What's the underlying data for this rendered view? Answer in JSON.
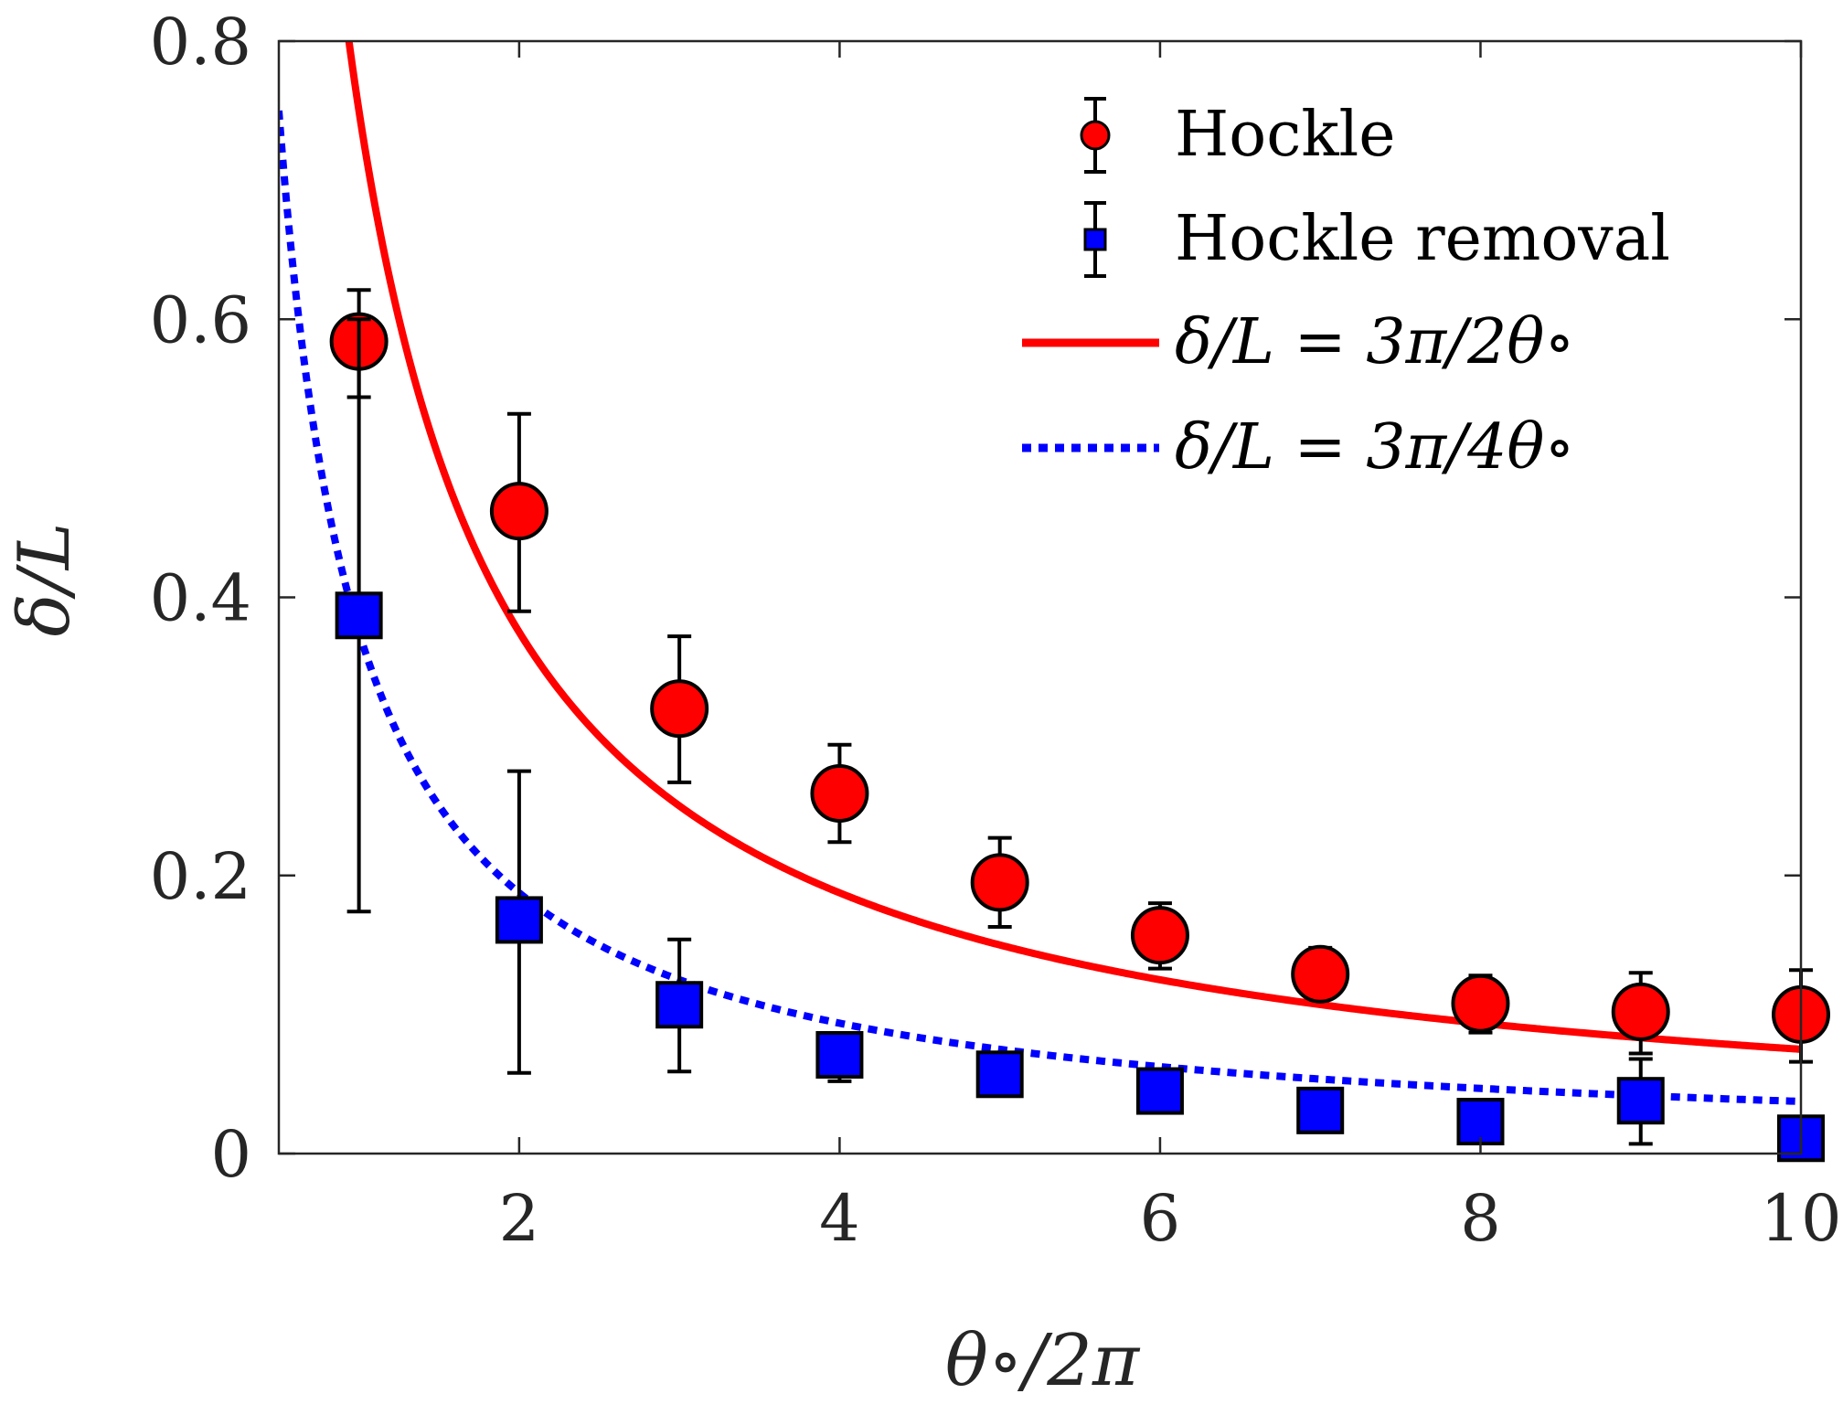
{
  "chart_data": {
    "type": "scatter",
    "title": "",
    "xlabel": "θ∘/2π",
    "ylabel": "δ/L",
    "xlim": [
      0.5,
      10
    ],
    "ylim": [
      0,
      0.8
    ],
    "xticks": [
      2,
      4,
      6,
      8,
      10
    ],
    "yticks": [
      0,
      0.2,
      0.4,
      0.6,
      0.8
    ],
    "xtick_labels": [
      "2",
      "4",
      "6",
      "8",
      "10"
    ],
    "ytick_labels": [
      "0",
      "0.2",
      "0.4",
      "0.6",
      "0.8"
    ],
    "grid": false,
    "legend_position": "top-right",
    "series": [
      {
        "name": "Hockle",
        "kind": "errorbar",
        "marker": "circle",
        "color": "#ff0000",
        "x": [
          1,
          2,
          3,
          4,
          5,
          6,
          7,
          8,
          9,
          10
        ],
        "y": [
          0.584,
          0.462,
          0.32,
          0.259,
          0.195,
          0.157,
          0.129,
          0.108,
          0.102,
          0.1
        ],
        "err_low": [
          0.04,
          0.072,
          0.053,
          0.035,
          0.032,
          0.024,
          0.016,
          0.021,
          0.03,
          0.034
        ],
        "err_high": [
          0.037,
          0.07,
          0.052,
          0.035,
          0.032,
          0.023,
          0.019,
          0.02,
          0.028,
          0.032
        ]
      },
      {
        "name": "Hockle removal",
        "kind": "errorbar",
        "marker": "square",
        "color": "#0000ff",
        "x": [
          1,
          2,
          3,
          4,
          5,
          6,
          7,
          8,
          9,
          10
        ],
        "y": [
          0.387,
          0.168,
          0.107,
          0.071,
          0.057,
          0.045,
          0.031,
          0.023,
          0.038,
          0.011
        ],
        "err_low": [
          0.213,
          0.11,
          0.048,
          0.019,
          0.0,
          0.005,
          0.015,
          0.01,
          0.031,
          0.007
        ],
        "err_high": [
          0.213,
          0.107,
          0.047,
          0.009,
          0.0,
          0.005,
          0.013,
          0.011,
          0.03,
          0.007
        ]
      },
      {
        "name": "δ/L = 3π/2θ∘",
        "kind": "line",
        "style": "solid",
        "color": "#ff0000",
        "formula": "0.75 / x",
        "x_range": [
          0.5,
          10
        ]
      },
      {
        "name": "δ/L = 3π/4θ∘",
        "kind": "line",
        "style": "dotted",
        "color": "#0000ff",
        "formula": "0.375 / x",
        "x_range": [
          0.5,
          10
        ]
      }
    ]
  }
}
